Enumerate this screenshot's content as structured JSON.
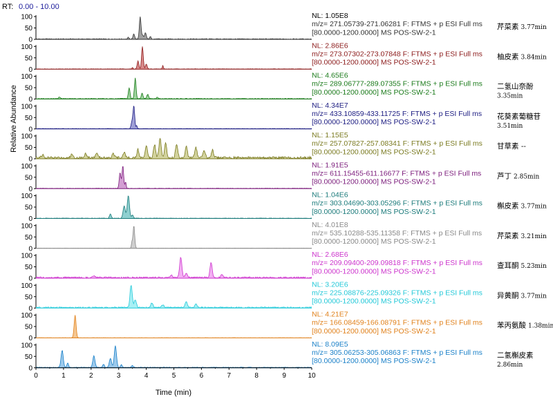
{
  "header": {
    "rt_prefix": "RT:",
    "rt_range": "0.00 - 10.00"
  },
  "chart_data": {
    "type": "line",
    "title": "",
    "xlabel": "Time (min)",
    "ylabel": "Relative Abundance",
    "xlim": [
      0,
      10
    ],
    "ylim": [
      0,
      100
    ],
    "x_ticks": [
      0,
      1,
      2,
      3,
      4,
      5,
      6,
      7,
      8,
      9,
      10
    ],
    "y_ticks": [
      0,
      50,
      100
    ],
    "series": [
      {
        "nl": "NL: 1.05E8",
        "mz": "m/z= 271.05739-271.06281 F: FTMS + p ESI Full ms",
        "scan": "[80.0000-1200.0000]  MS POS-SW-2-1",
        "compound": "芹菜素",
        "rt_label": "3.77min",
        "color": "#333333",
        "fill": "#a0a0a0",
        "nl_color": "#000000",
        "baseline": 3,
        "peaks": [
          [
            3.78,
            100,
            0.03
          ],
          [
            3.55,
            22,
            0.03
          ],
          [
            3.97,
            28,
            0.03
          ],
          [
            3.87,
            15,
            0.03
          ],
          [
            4.15,
            10,
            0.03
          ],
          [
            3.35,
            8,
            0.02
          ]
        ]
      },
      {
        "nl": "NL: 2.86E6",
        "mz": "m/z= 273.07302-273.07848 F: FTMS + p ESI Full ms",
        "scan": "[80.0000-1200.0000]  MS POS-SW-2-1",
        "compound": "柚皮素",
        "rt_label": "3.84min",
        "color": "#8b1a1a",
        "fill": "#d98c8c",
        "nl_color": "#8b1a1a",
        "baseline": 2,
        "peaks": [
          [
            3.86,
            100,
            0.03
          ],
          [
            3.7,
            35,
            0.03
          ],
          [
            4.0,
            22,
            0.03
          ],
          [
            4.6,
            15,
            0.02
          ],
          [
            3.5,
            6,
            0.02
          ]
        ]
      },
      {
        "nl": "NL: 4.65E6",
        "mz": "m/z= 289.06777-289.07355 F: FTMS + p ESI Full ms",
        "scan": "[80.0000-1200.0000]  MS POS-SW-2-1",
        "compound": "二氢山奈酚",
        "rt_label": "3.35min",
        "color": "#1a7a1a",
        "fill": "#9ed39e",
        "nl_color": "#1a7a1a",
        "baseline": 3,
        "peaks": [
          [
            3.6,
            90,
            0.03
          ],
          [
            3.38,
            48,
            0.03
          ],
          [
            3.85,
            25,
            0.03
          ],
          [
            4.05,
            20,
            0.03
          ],
          [
            0.85,
            8,
            0.03
          ],
          [
            4.4,
            6,
            0.03
          ]
        ]
      },
      {
        "nl": "NL: 4.34E7",
        "mz": "m/z= 433.10859-433.11725 F: FTMS + p ESI Full ms",
        "scan": "[80.0000-1200.0000]  MS POS-SW-2-1",
        "compound": "花葵素葡糖苷",
        "rt_label": "3.51min",
        "color": "#1a1a80",
        "fill": "#9f9fd6",
        "nl_color": "#1a1a80",
        "baseline": 2,
        "peaks": [
          [
            3.55,
            100,
            0.03
          ],
          [
            3.48,
            30,
            0.03
          ],
          [
            3.65,
            15,
            0.02
          ]
        ]
      },
      {
        "nl": "NL: 1.15E5",
        "mz": "m/z= 257.07827-257.08341 F: FTMS + p ESI Full ms",
        "scan": "[80.0000-1200.0000]  MS POS-SW-2-1",
        "compound": "甘草素 --",
        "rt_label": "",
        "color": "#7a7a20",
        "fill": "#d3d39e",
        "nl_color": "#7a7a20",
        "baseline": 10,
        "peaks": [
          [
            4.5,
            85,
            0.04
          ],
          [
            4.3,
            60,
            0.04
          ],
          [
            4.7,
            65,
            0.04
          ],
          [
            5.1,
            60,
            0.04
          ],
          [
            5.45,
            50,
            0.04
          ],
          [
            4.0,
            55,
            0.04
          ],
          [
            3.7,
            35,
            0.04
          ],
          [
            5.8,
            45,
            0.04
          ],
          [
            6.1,
            30,
            0.04
          ],
          [
            6.4,
            35,
            0.04
          ],
          [
            3.2,
            25,
            0.04
          ],
          [
            2.8,
            20,
            0.04
          ],
          [
            2.2,
            20,
            0.04
          ],
          [
            1.3,
            15,
            0.04
          ],
          [
            0.25,
            12,
            0.04
          ],
          [
            1.8,
            18,
            0.04
          ]
        ]
      },
      {
        "nl": "NL: 1.91E5",
        "mz": "m/z= 611.15455-611.16677 F: FTMS + p ESI Full ms",
        "scan": "[80.0000-1200.0000]  MS POS-SW-2-1",
        "compound": "芦丁",
        "rt_label": "2.85min",
        "color": "#7a1a7a",
        "fill": "#d39ed3",
        "nl_color": "#7a1a7a",
        "baseline": 2,
        "peaks": [
          [
            3.15,
            100,
            0.03
          ],
          [
            3.05,
            70,
            0.03
          ],
          [
            3.25,
            30,
            0.02
          ]
        ]
      },
      {
        "nl": "NL: 1.04E6",
        "mz": "m/z= 303.04690-303.05296 F: FTMS + p ESI Full ms",
        "scan": "[80.0000-1200.0000]  MS POS-SW-2-1",
        "compound": "槲皮素",
        "rt_label": "3.77min",
        "color": "#1a7a7a",
        "fill": "#8fd0d0",
        "nl_color": "#1a7a7a",
        "baseline": 2,
        "peaks": [
          [
            3.35,
            100,
            0.04
          ],
          [
            3.2,
            55,
            0.04
          ],
          [
            2.7,
            20,
            0.03
          ],
          [
            3.5,
            15,
            0.03
          ]
        ]
      },
      {
        "nl": "NL: 4.01E8",
        "mz": "m/z= 535.10288-535.11358 F: FTMS + p ESI Full ms",
        "scan": "[80.0000-1200.0000]  MS POS-SW-2-1",
        "compound": "芹菜素",
        "rt_label": "3.21min",
        "color": "#888888",
        "fill": "#cfcfcf",
        "nl_color": "#888888",
        "baseline": 1,
        "peaks": [
          [
            3.55,
            100,
            0.03
          ],
          [
            3.48,
            25,
            0.02
          ]
        ]
      },
      {
        "nl": "NL: 2.68E6",
        "mz": "m/z= 209.09400-209.09818 F: FTMS + p ESI Full ms",
        "scan": "[80.0000-1200.0000]  MS POS-SW-2-1",
        "compound": "查耳酮",
        "rt_label": "5.23min",
        "color": "#cc33cc",
        "fill": "#f3b0f3",
        "nl_color": "#cc33cc",
        "baseline": 6,
        "peaks": [
          [
            5.25,
            90,
            0.04
          ],
          [
            6.35,
            65,
            0.04
          ],
          [
            5.45,
            18,
            0.04
          ],
          [
            6.75,
            15,
            0.04
          ],
          [
            4.9,
            10,
            0.04
          ],
          [
            2.1,
            8,
            0.04
          ]
        ]
      },
      {
        "nl": "NL: 3.20E6",
        "mz": "m/z= 225.08876-225.09326 F: FTMS + p ESI Full ms",
        "scan": "[80.0000-1200.0000]  MS POS-SW-2-1",
        "compound": "异黄酮",
        "rt_label": "3.77min",
        "color": "#22c8d8",
        "fill": "#a8f0f5",
        "nl_color": "#22c8d8",
        "baseline": 5,
        "peaks": [
          [
            3.45,
            100,
            0.04
          ],
          [
            3.6,
            35,
            0.04
          ],
          [
            4.2,
            20,
            0.04
          ],
          [
            5.45,
            25,
            0.04
          ],
          [
            5.8,
            15,
            0.04
          ],
          [
            4.6,
            12,
            0.04
          ]
        ]
      },
      {
        "nl": "NL: 4.21E7",
        "mz": "m/z= 166.08459-166.08791 F: FTMS + p ESI Full ms",
        "scan": "[80.0000-1200.0000]  MS POS-SW-2-1",
        "compound": "苯丙氨酸",
        "rt_label": "1.38min",
        "color": "#e0801a",
        "fill": "#f5c690",
        "nl_color": "#e0801a",
        "baseline": 1,
        "peaks": [
          [
            1.42,
            100,
            0.035
          ]
        ]
      },
      {
        "nl": "NL: 8.09E5",
        "mz": "m/z= 305.06253-305.06863 F: FTMS + p ESI Full ms",
        "scan": "[80.0000-1200.0000]  MS POS-SW-2-1",
        "compound": "二氢槲皮素",
        "rt_label": "2.86min",
        "color": "#1a80c8",
        "fill": "#9ccaec",
        "nl_color": "#1a80c8",
        "baseline": 3,
        "peaks": [
          [
            2.88,
            95,
            0.04
          ],
          [
            0.95,
            75,
            0.04
          ],
          [
            2.1,
            50,
            0.04
          ],
          [
            2.7,
            40,
            0.04
          ],
          [
            1.15,
            20,
            0.03
          ],
          [
            2.45,
            15,
            0.03
          ],
          [
            3.1,
            12,
            0.03
          ],
          [
            3.5,
            8,
            0.03
          ]
        ]
      }
    ]
  }
}
